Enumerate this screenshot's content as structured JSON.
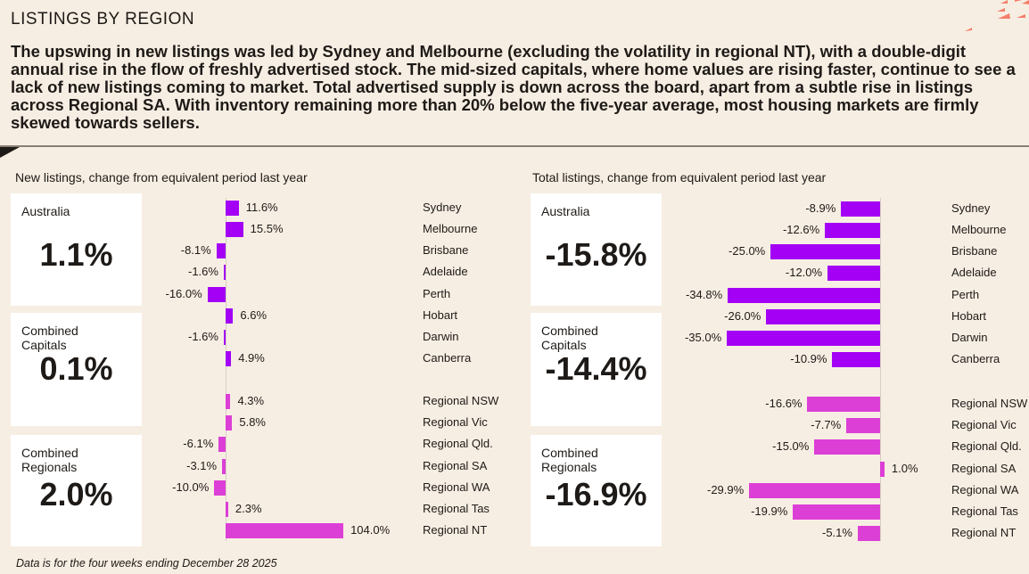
{
  "title": "LISTINGS BY REGION",
  "lede": "The upswing in new listings was led by Sydney and Melbourne (excluding the volatility in regional NT), with a double-digit annual rise in the flow of freshly advertised stock. The mid-sized capitals, where home values are rising faster, continue to see a lack of new listings coming to market.   Total advertised supply is down across the board, apart from a subtle rise in listings across Regional SA.  With inventory remaining more than 20% below the five-year average, most housing markets are firmly skewed towards sellers.",
  "footnote": "Data is for the four weeks ending December 28 2025",
  "colors": {
    "capitals": "#a300f5",
    "regionals": "#dc3fd6",
    "background": "#f7eee3"
  },
  "chart_data": [
    {
      "type": "bar",
      "orientation": "horizontal",
      "title": "New listings, change from equivalent period last year",
      "unit": "%",
      "summary": [
        {
          "label": "Australia",
          "value": "1.1%"
        },
        {
          "label": "Combined Capitals",
          "value": "0.1%"
        },
        {
          "label": "Combined Regionals",
          "value": "2.0%"
        }
      ],
      "categories": [
        "Sydney",
        "Melbourne",
        "Brisbane",
        "Adelaide",
        "Perth",
        "Hobart",
        "Darwin",
        "Canberra",
        "Regional NSW",
        "Regional Vic",
        "Regional Qld.",
        "Regional SA",
        "Regional WA",
        "Regional Tas",
        "Regional NT"
      ],
      "values": [
        11.6,
        15.5,
        -8.1,
        -1.6,
        -16.0,
        6.6,
        -1.6,
        4.9,
        4.3,
        5.8,
        -6.1,
        -3.1,
        -10.0,
        2.3,
        104.0
      ]
    },
    {
      "type": "bar",
      "orientation": "horizontal",
      "title": "Total listings, change from equivalent period last year",
      "unit": "%",
      "summary": [
        {
          "label": "Australia",
          "value": "-15.8%"
        },
        {
          "label": "Combined Capitals",
          "value": "-14.4%"
        },
        {
          "label": "Combined Regionals",
          "value": "-16.9%"
        }
      ],
      "categories": [
        "Sydney",
        "Melbourne",
        "Brisbane",
        "Adelaide",
        "Perth",
        "Hobart",
        "Darwin",
        "Canberra",
        "Regional NSW",
        "Regional Vic",
        "Regional Qld.",
        "Regional SA",
        "Regional WA",
        "Regional Tas",
        "Regional NT"
      ],
      "values": [
        -8.9,
        -12.6,
        -25.0,
        -12.0,
        -34.8,
        -26.0,
        -35.0,
        -10.9,
        -16.6,
        -7.7,
        -15.0,
        1.0,
        -29.9,
        -19.9,
        -5.1
      ]
    }
  ]
}
